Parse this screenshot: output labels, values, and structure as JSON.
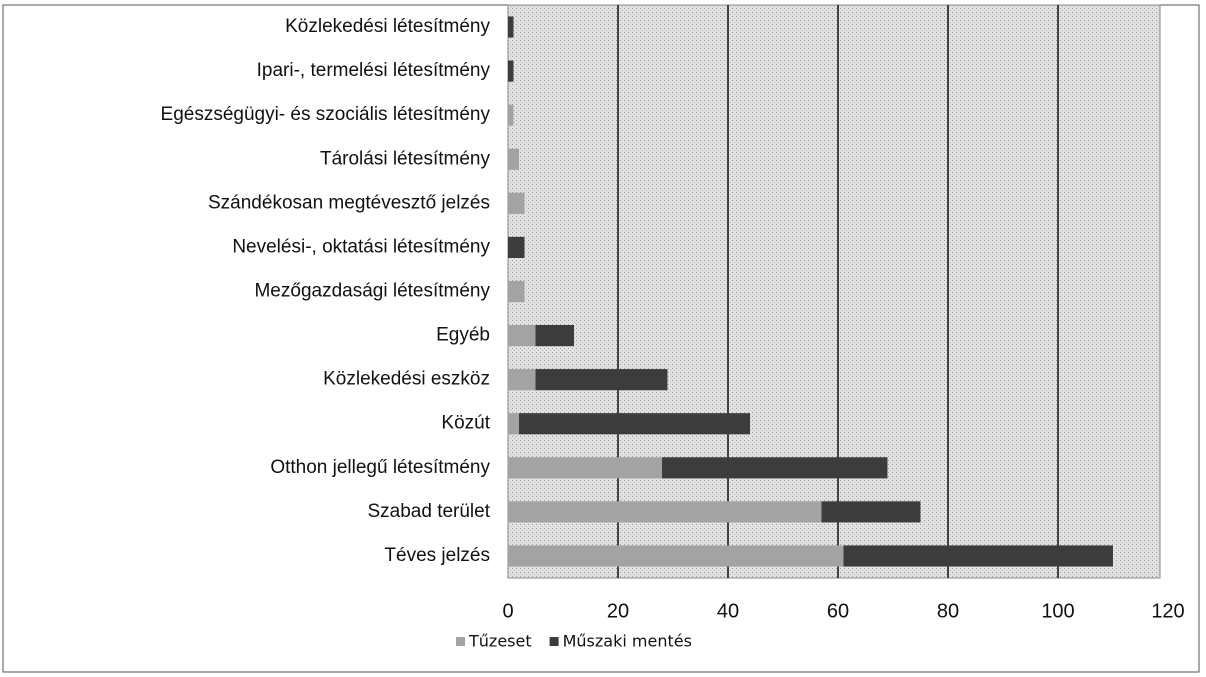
{
  "chart_data": {
    "type": "bar",
    "orientation": "horizontal",
    "stacked": true,
    "categories": [
      "Közlekedési létesítmény",
      "Ipari-, termelési létesítmény",
      "Egészségügyi- és szociális létesítmény",
      "Tárolási létesítmény",
      "Szándékosan megtévesztő jelzés",
      "Nevelési-, oktatási létesítmény",
      "Mezőgazdasági létesítmény",
      "Egyéb",
      "Közlekedési eszköz",
      "Közút",
      "Otthon jellegű létesítmény",
      "Szabad terület",
      "Téves jelzés"
    ],
    "series": [
      {
        "name": "Tűzeset",
        "color": "#a3a3a3",
        "values": [
          0,
          0,
          1,
          2,
          3,
          0,
          3,
          5,
          5,
          2,
          28,
          57,
          61
        ]
      },
      {
        "name": "Műszaki mentés",
        "color": "#3c3c3c",
        "values": [
          1,
          1,
          0,
          0,
          0,
          3,
          0,
          7,
          24,
          42,
          41,
          18,
          49
        ]
      }
    ],
    "xlim": [
      0,
      120
    ],
    "xticks": [
      0,
      20,
      40,
      60,
      80,
      100,
      120
    ],
    "grid": true,
    "legend": "bottom"
  }
}
